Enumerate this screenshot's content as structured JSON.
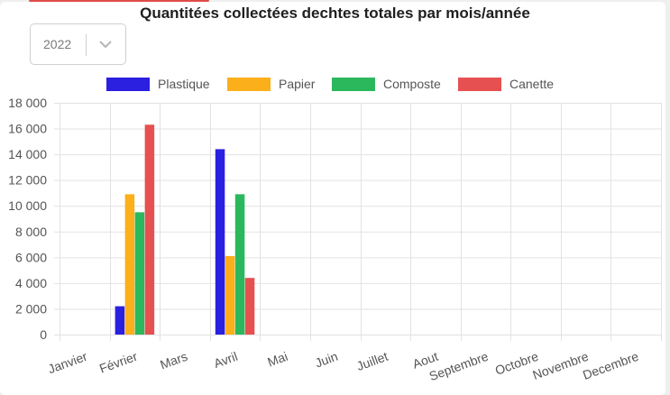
{
  "title": "Quantitées collectées dechtes totales par mois/année",
  "year_select": {
    "value": "2022",
    "icon": "chevron-down-icon"
  },
  "chart_data": {
    "type": "bar",
    "categories": [
      "Janvier",
      "Février",
      "Mars",
      "Avril",
      "Mai",
      "Juin",
      "Juillet",
      "Aout",
      "Septembre",
      "Octobre",
      "Novembre",
      "Decembre"
    ],
    "series": [
      {
        "name": "Plastique",
        "color": "#2b1fe0",
        "values": [
          0,
          2200,
          0,
          14400,
          0,
          0,
          0,
          0,
          0,
          0,
          0,
          0
        ]
      },
      {
        "name": "Papier",
        "color": "#fbaf1b",
        "values": [
          0,
          10900,
          0,
          6100,
          0,
          0,
          0,
          0,
          0,
          0,
          0,
          0
        ]
      },
      {
        "name": "Composte",
        "color": "#2bb85c",
        "values": [
          0,
          9500,
          0,
          10900,
          0,
          0,
          0,
          0,
          0,
          0,
          0,
          0
        ]
      },
      {
        "name": "Canette",
        "color": "#e65050",
        "values": [
          0,
          16300,
          0,
          4400,
          0,
          0,
          0,
          0,
          0,
          0,
          0,
          0
        ]
      }
    ],
    "ylim": [
      0,
      18000
    ],
    "yticks": [
      "0",
      "2 000",
      "4 000",
      "6 000",
      "8 000",
      "10 000",
      "12 000",
      "14 000",
      "16 000",
      "18 000"
    ],
    "ytick_values": [
      0,
      2000,
      4000,
      6000,
      8000,
      10000,
      12000,
      14000,
      16000,
      18000
    ],
    "grid": true,
    "legend": "top"
  }
}
